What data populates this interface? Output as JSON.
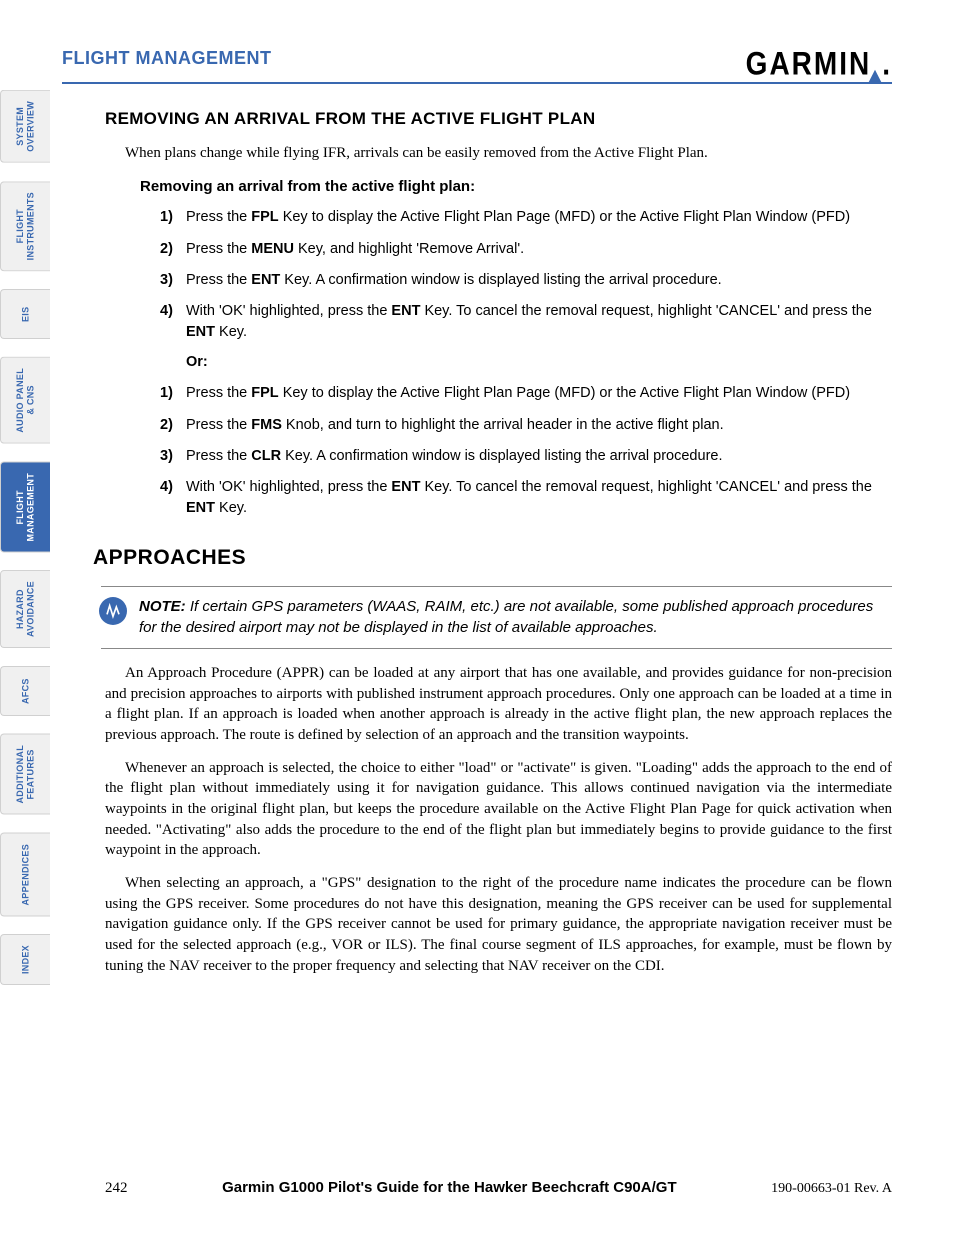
{
  "header": {
    "section": "FLIGHT MANAGEMENT",
    "brand": "GARMIN"
  },
  "tabs": [
    {
      "label": "SYSTEM\nOVERVIEW",
      "active": false
    },
    {
      "label": "FLIGHT\nINSTRUMENTS",
      "active": false
    },
    {
      "label": "EIS",
      "active": false
    },
    {
      "label": "AUDIO PANEL\n& CNS",
      "active": false
    },
    {
      "label": "FLIGHT\nMANAGEMENT",
      "active": true
    },
    {
      "label": "HAZARD\nAVOIDANCE",
      "active": false
    },
    {
      "label": "AFCS",
      "active": false
    },
    {
      "label": "ADDITIONAL\nFEATURES",
      "active": false
    },
    {
      "label": "APPENDICES",
      "active": false
    },
    {
      "label": "INDEX",
      "active": false
    }
  ],
  "section1": {
    "title": "REMOVING AN ARRIVAL FROM THE ACTIVE FLIGHT PLAN",
    "intro": "When plans change while flying IFR, arrivals can be easily removed from the Active Flight Plan.",
    "subhead": "Removing an arrival from the active flight plan:",
    "stepsA": [
      {
        "n": "1)",
        "pre": "Press the ",
        "b": "FPL",
        "post": " Key to display the Active Flight Plan Page (MFD) or the Active Flight Plan Window (PFD)"
      },
      {
        "n": "2)",
        "pre": "Press the ",
        "b": "MENU",
        "post": " Key, and highlight 'Remove Arrival'."
      },
      {
        "n": "3)",
        "pre": "Press the ",
        "b": "ENT",
        "post": " Key.  A confirmation window is displayed listing the arrival procedure."
      },
      {
        "n": "4)",
        "pre": "With 'OK' highlighted, press the ",
        "b": "ENT",
        "post": " Key.  To cancel the removal request, highlight 'CANCEL' and press the ",
        "b2": "ENT",
        "post2": " Key."
      }
    ],
    "or": "Or:",
    "stepsB": [
      {
        "n": "1)",
        "pre": "Press the ",
        "b": "FPL",
        "post": " Key to display the Active Flight Plan Page (MFD) or the Active Flight Plan Window (PFD)"
      },
      {
        "n": "2)",
        "pre": "Press the ",
        "b": "FMS",
        "post": " Knob, and turn to highlight the arrival header in the active flight plan."
      },
      {
        "n": "3)",
        "pre": "Press the ",
        "b": "CLR",
        "post": " Key.  A confirmation window is displayed listing the arrival procedure."
      },
      {
        "n": "4)",
        "pre": "With 'OK' highlighted, press the ",
        "b": "ENT",
        "post": " Key.  To cancel the removal request, highlight 'CANCEL' and press the ",
        "b2": "ENT",
        "post2": " Key."
      }
    ]
  },
  "section2": {
    "title": "APPROACHES",
    "note_label": "NOTE:",
    "note": " If certain GPS parameters (WAAS, RAIM, etc.) are not available, some published approach procedures for the desired airport may not be displayed in the list of available approaches.",
    "p1": "An Approach Procedure (APPR) can be loaded at any airport that has one available, and provides guidance for non-precision and precision approaches to airports with published instrument approach procedures. Only one approach can be loaded at a time in a flight plan. If an approach is loaded when another approach is already in the active flight plan, the new approach replaces the previous approach.  The route is defined by selection of an approach and the transition waypoints.",
    "p2": "Whenever an approach is selected, the choice to either \"load\" or \"activate\" is given.  \"Loading\" adds the approach to the end of the flight plan without immediately using it for navigation guidance. This allows continued navigation via the intermediate waypoints in the original flight plan, but keeps the procedure available on the Active Flight Plan Page for quick activation when needed. \"Activating\" also adds the procedure to the end of the flight plan but immediately begins to provide guidance to the first waypoint in the approach.",
    "p3": "When selecting an approach, a \"GPS\" designation to the right of the procedure name indicates the procedure can be flown using the GPS receiver.  Some procedures do not have this designation, meaning the GPS receiver can be used for supplemental navigation guidance only.  If the GPS receiver cannot be used for primary guidance, the appropriate navigation receiver must be used for the selected approach (e.g., VOR or ILS).  The final course segment of ILS approaches, for example, must be flown by tuning the NAV receiver to the proper frequency and selecting that NAV receiver on the CDI."
  },
  "footer": {
    "page": "242",
    "title": "Garmin G1000 Pilot's Guide for the Hawker Beechcraft C90A/GT",
    "rev": "190-00663-01  Rev. A"
  },
  "colors": {
    "accent": "#3968b0",
    "tab_bg": "#f0f0f0",
    "text": "#000000"
  }
}
